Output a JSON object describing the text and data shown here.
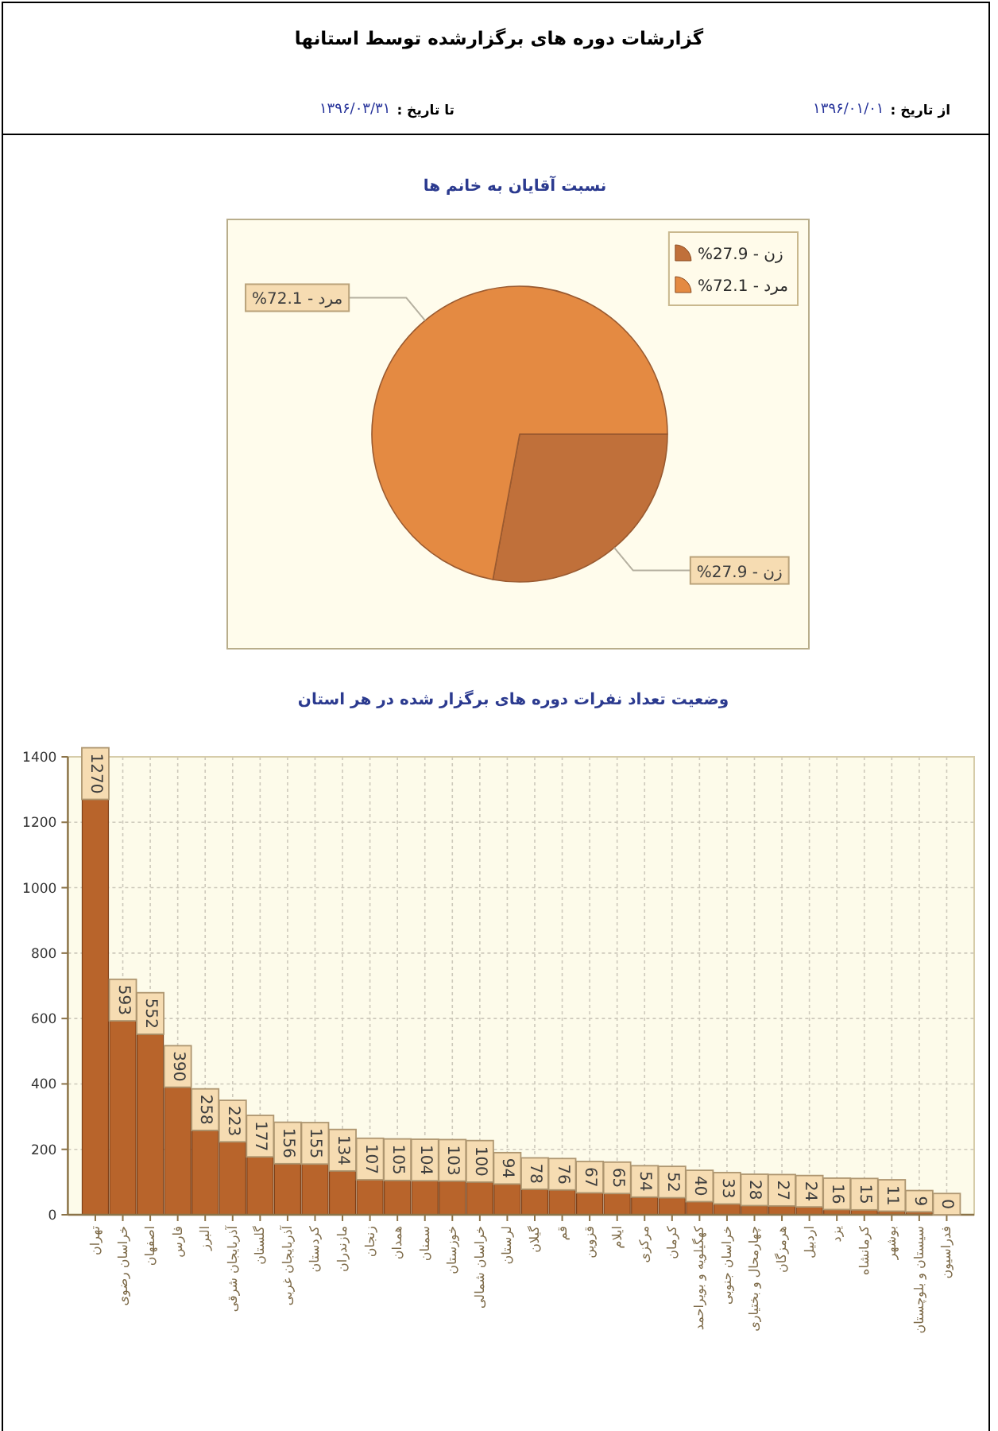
{
  "chart_data": [
    {
      "type": "other",
      "title": "گزارشات دوره های برگزارشده توسط استانها",
      "annotations": [
        "از تاریخ :",
        "۱۳۹۶/۰۱/۰۱",
        "تا تاریخ :",
        "۱۳۹۶/۰۳/۳۱"
      ]
    },
    {
      "type": "pie",
      "title": "نسبت آقایان به خانم ها",
      "categories": [
        "%27.9 - زن",
        "%72.1 - مرد"
      ],
      "values": [
        27.9,
        72.1
      ],
      "colors": [
        "#c0703a",
        "#e48a42"
      ],
      "value_labels": [
        "%27.9 - زن",
        "%72.1 - مرد"
      ],
      "legend": "top right"
    },
    {
      "type": "bar",
      "title": "وضعیت تعداد نفرات دوره های برگزار شده در هر استان",
      "categories": [
        "تهران",
        "خراسان رضوی",
        "اصفهان",
        "فارس",
        "البرز",
        "آذربایجان شرقی",
        "گلستان",
        "آذربایجان غربی",
        "کردستان",
        "مازندران",
        "زنجان",
        "همدان",
        "سمنان",
        "خوزستان",
        "خراسان شمالی",
        "لرستان",
        "گیلان",
        "قم",
        "قزوین",
        "ایلام",
        "مرکزی",
        "کرمان",
        "کهگیلویه و بویراحمد",
        "خراسان جنوبی",
        "چهارمحال و بختیاری",
        "هرمزگان",
        "اردبیل",
        "یزد",
        "کرمانشاه",
        "بوشهر",
        "سیستان و بلوچستان",
        "فدراسیون"
      ],
      "values": [
        1270,
        593,
        552,
        390,
        258,
        223,
        177,
        156,
        155,
        134,
        107,
        105,
        104,
        103,
        100,
        94,
        78,
        76,
        67,
        65,
        54,
        52,
        40,
        33,
        28,
        27,
        24,
        16,
        15,
        11,
        9,
        0
      ],
      "color": "#b8642b",
      "ylim": [
        0,
        1400
      ],
      "yticks": [
        0,
        200,
        400,
        600,
        800,
        1000,
        1200,
        1400
      ],
      "grid": true,
      "data_labels": true
    }
  ]
}
